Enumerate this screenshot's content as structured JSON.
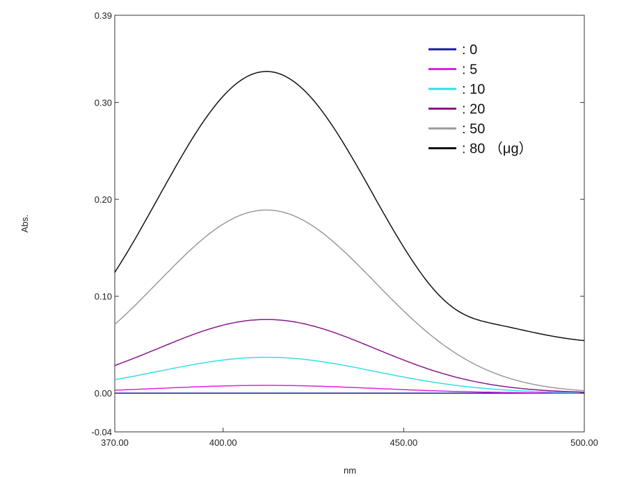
{
  "chart_data": {
    "type": "line",
    "xlabel": "nm",
    "ylabel": "Abs.",
    "xlim": [
      370,
      500
    ],
    "ylim": [
      -0.04,
      0.39
    ],
    "x_ticks": [
      "370.00",
      "400.00",
      "450.00",
      "500.00"
    ],
    "x_tick_values": [
      370,
      400,
      450,
      500
    ],
    "y_ticks": [
      "0.39",
      "0.30",
      "0.20",
      "0.10",
      "0.00",
      "-0.04"
    ],
    "y_tick_values": [
      0.39,
      0.3,
      0.2,
      0.1,
      0.0,
      -0.04
    ],
    "grid": false,
    "legend_position": "top-right",
    "series": [
      {
        "name": ": 0",
        "color": "#1a1aa0",
        "peak": 0.0,
        "base": 0.0,
        "center": 412,
        "sigma": 30
      },
      {
        "name": ": 5",
        "color": "#e020e0",
        "peak": 0.008,
        "base": 0.0,
        "center": 412,
        "sigma": 30
      },
      {
        "name": ": 10",
        "color": "#33dde8",
        "peak": 0.037,
        "base": 0.0,
        "center": 412,
        "sigma": 30
      },
      {
        "name": ": 20",
        "color": "#8a168a",
        "peak": 0.076,
        "base": 0.0,
        "center": 412,
        "sigma": 30
      },
      {
        "name": ": 50",
        "color": "#9a9a9a",
        "peak": 0.189,
        "base": 0.0,
        "center": 412,
        "sigma": 30
      },
      {
        "name": ": 80 （μg）",
        "color": "#111111",
        "peak": 0.357,
        "base": 0.05,
        "center": 412,
        "sigma": 30
      }
    ]
  }
}
